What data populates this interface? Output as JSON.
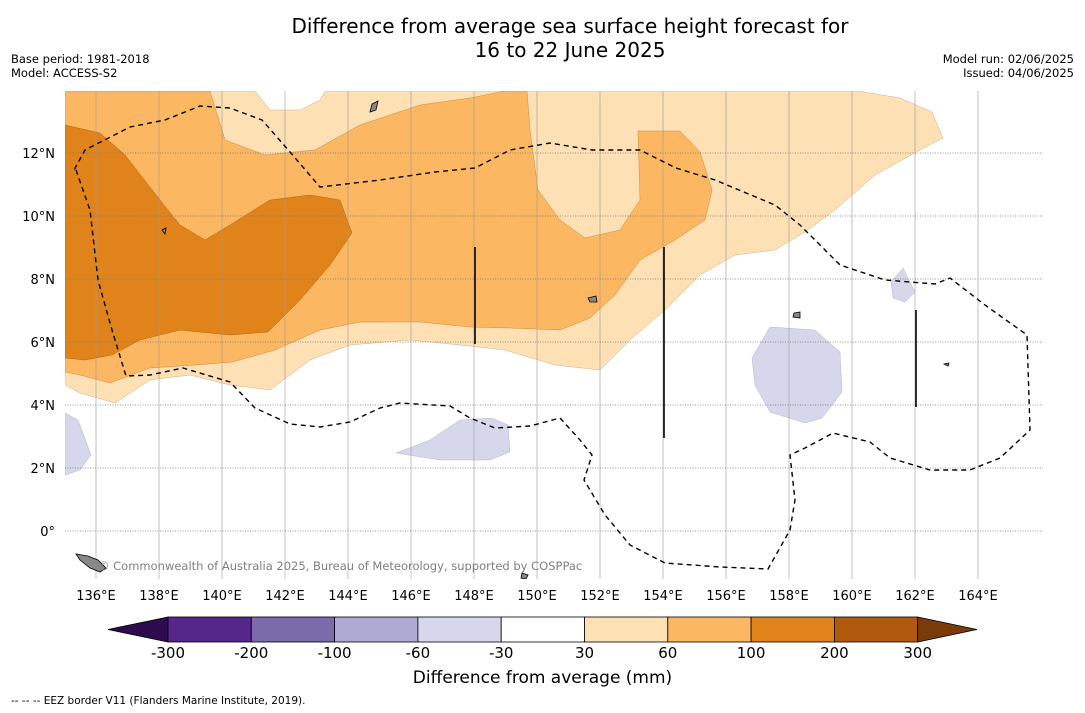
{
  "header": {
    "title_line1": "Difference from average sea surface height forecast for",
    "title_line2": "16 to 22 June 2025",
    "base_period": "Base period: 1981-2018",
    "model": "Model: ACCESS-S2",
    "model_run": "Model run: 02/06/2025",
    "issued": "Issued: 04/06/2025"
  },
  "map": {
    "lon_labels": [
      "136°E",
      "138°E",
      "140°E",
      "142°E",
      "144°E",
      "146°E",
      "148°E",
      "150°E",
      "152°E",
      "154°E",
      "156°E",
      "158°E",
      "160°E",
      "162°E",
      "164°E"
    ],
    "lat_labels": [
      "12°N",
      "10°N",
      "8°N",
      "6°N",
      "4°N",
      "2°N",
      "0°"
    ],
    "copyright": "© Commonwealth of Australia 2025, Bureau of Meteorology, supported by COSPPac"
  },
  "colorbar": {
    "ticks": [
      "-300",
      "-200",
      "-100",
      "-60",
      "-30",
      "30",
      "60",
      "100",
      "200",
      "300"
    ],
    "colors": [
      "#55278a",
      "#7c6bab",
      "#aeaad3",
      "#d6d7ea",
      "#ffffff",
      "#fde0b4",
      "#fbb761",
      "#e0831a",
      "#b05a0d"
    ],
    "extend_low": "#2d0b4e",
    "extend_high": "#7a3b08",
    "title": "Difference from average (mm)"
  },
  "footer": {
    "legend": "--  --  -- EEZ border V11 (Flanders Marine Institute, 2019)."
  }
}
